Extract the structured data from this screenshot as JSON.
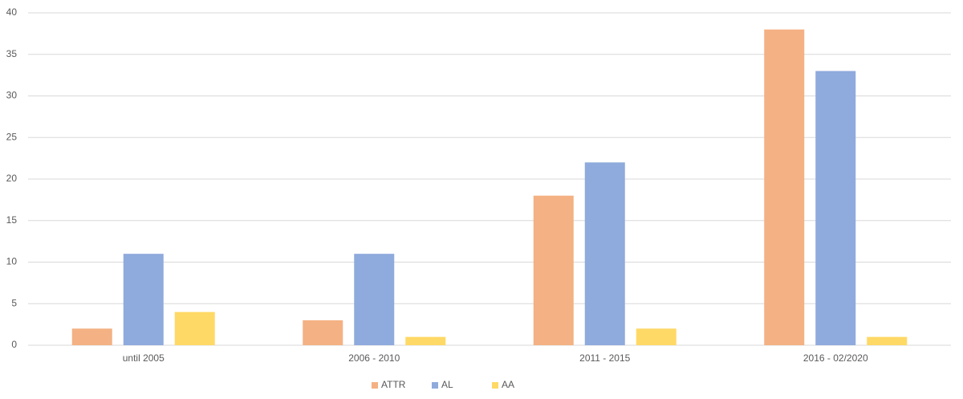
{
  "chart_data": {
    "type": "bar",
    "categories": [
      "until 2005",
      "2006 - 2010",
      "2011 - 2015",
      "2016 - 02/2020"
    ],
    "series": [
      {
        "name": "ATTR",
        "color": "#f4b183",
        "values": [
          2,
          3,
          18,
          38
        ]
      },
      {
        "name": "AL",
        "color": "#8faadc",
        "values": [
          11,
          11,
          22,
          33
        ]
      },
      {
        "name": "AA",
        "color": "#ffd966",
        "values": [
          4,
          1,
          2,
          1
        ]
      }
    ],
    "ylim": [
      0,
      40
    ],
    "yticks": [
      0,
      5,
      10,
      15,
      20,
      25,
      30,
      35,
      40
    ],
    "grid": true,
    "legend": "bottom"
  }
}
